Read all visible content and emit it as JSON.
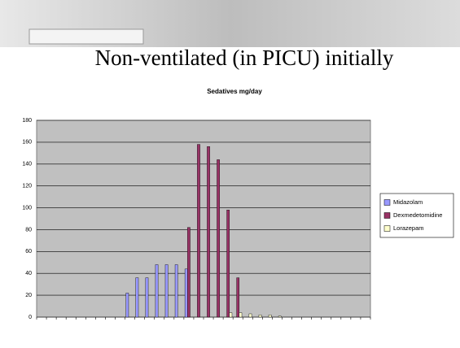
{
  "title": "Non-ventilated (in PICU) initially",
  "chart_data": {
    "type": "bar",
    "title": "Sedatives mg/day",
    "categories": [
      null,
      null,
      null,
      null,
      null,
      null,
      null,
      null,
      null,
      null,
      null,
      null,
      null,
      null,
      null,
      null,
      null,
      null,
      null,
      null,
      null,
      null,
      null,
      null,
      null,
      null,
      null,
      null,
      null,
      null,
      null,
      null,
      null,
      null
    ],
    "series": [
      {
        "name": "Midazolam",
        "color": "#9999ff",
        "values": [
          null,
          null,
          null,
          null,
          null,
          null,
          null,
          null,
          null,
          22,
          36,
          36,
          48,
          48,
          48,
          44,
          null,
          null,
          null,
          null,
          null,
          null,
          null,
          null,
          null,
          null,
          null,
          null,
          null,
          null,
          null,
          null,
          null,
          null
        ]
      },
      {
        "name": "Dexmedetomidine",
        "color": "#993366",
        "values": [
          null,
          null,
          null,
          null,
          null,
          null,
          null,
          null,
          null,
          null,
          null,
          null,
          null,
          null,
          null,
          82,
          158,
          156,
          144,
          98,
          36,
          null,
          null,
          null,
          null,
          null,
          null,
          null,
          null,
          null,
          null,
          null,
          null,
          null
        ]
      },
      {
        "name": "Lorazepam",
        "color": "#ffffcc",
        "values": [
          null,
          null,
          null,
          null,
          null,
          null,
          null,
          null,
          null,
          null,
          null,
          null,
          null,
          null,
          null,
          null,
          null,
          null,
          null,
          4,
          4,
          3,
          2,
          2,
          1,
          null,
          null,
          null,
          null,
          null,
          null,
          null,
          null,
          null
        ]
      }
    ],
    "ylim": [
      0,
      180
    ],
    "yticks": [
      0,
      20,
      40,
      60,
      80,
      100,
      120,
      140,
      160,
      180
    ],
    "grid": true,
    "legend": "right"
  }
}
